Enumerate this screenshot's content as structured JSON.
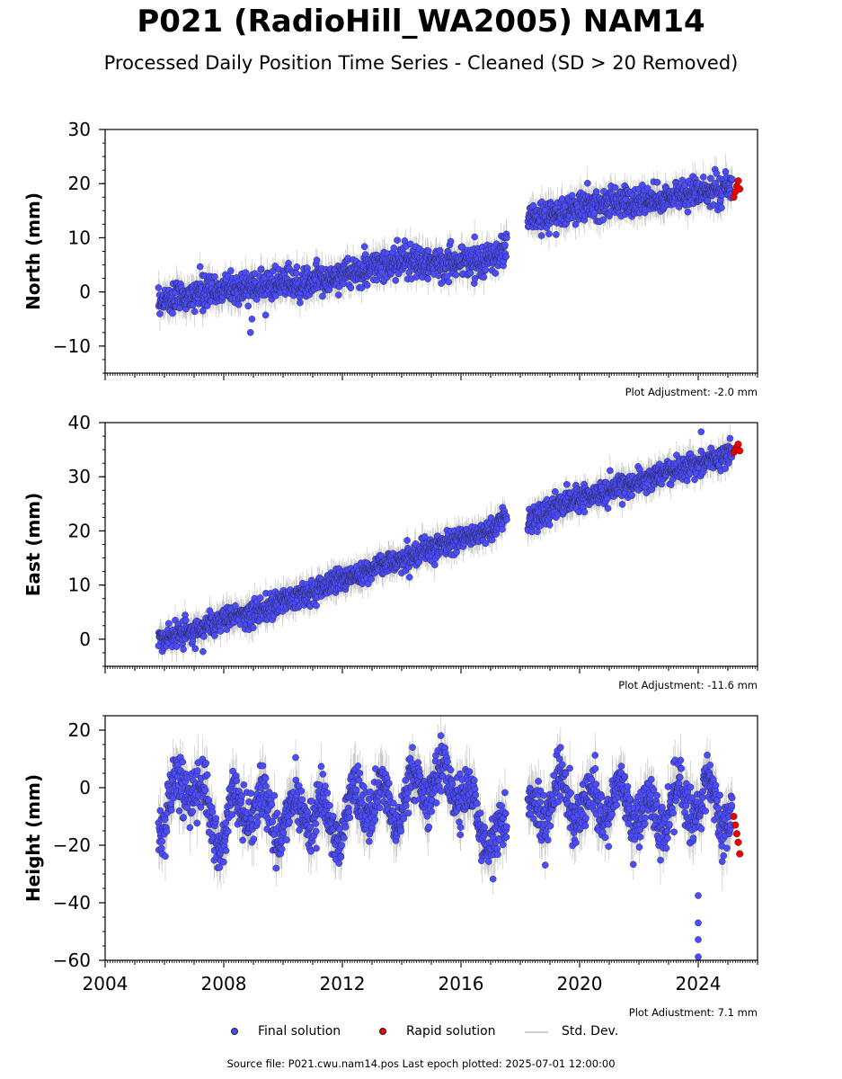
{
  "header": {
    "title": "P021 (RadioHill_WA2005) NAM14",
    "subtitle": "Processed Daily Position Time Series - Cleaned (SD > 20 Removed)"
  },
  "legend": {
    "final": "Final solution",
    "rapid": "Rapid solution",
    "stddev": "Std. Dev."
  },
  "footer": {
    "source": "Source file: P021.cwu.nam14.pos  Last epoch plotted: 2025-07-01 12:00:00"
  },
  "colors": {
    "final": "#4b4bff",
    "rapid": "#ee0000",
    "stddev": "#bdbdbd",
    "outline": "#222222"
  },
  "chart_data": [
    {
      "type": "scatter",
      "ylabel": "North (mm)",
      "adjustment": "Plot Adjustment: -2.0 mm",
      "xlim": [
        2004,
        2026
      ],
      "ylim": [
        -15,
        30
      ],
      "yticks": [
        -10,
        0,
        10,
        20,
        30
      ],
      "ytick_labels": [
        "−10",
        "0",
        "10",
        "20",
        "30"
      ],
      "xticks": [
        2004,
        2008,
        2012,
        2016,
        2020,
        2024
      ],
      "show_xtick_labels": false,
      "grid": false,
      "series": [
        {
          "name": "Final solution",
          "x": [
            2006.0,
            2007.0,
            2008.0,
            2009.0,
            2010.0,
            2011.0,
            2012.0,
            2013.0,
            2014.0,
            2015.0,
            2016.0,
            2017.0,
            2017.4,
            2018.3,
            2019.0,
            2020.0,
            2021.0,
            2022.0,
            2023.0,
            2024.0,
            2025.0
          ],
          "y": [
            -1.5,
            -0.5,
            0.5,
            1.0,
            1.5,
            2.0,
            3.0,
            4.5,
            5.5,
            5.5,
            5.5,
            6.0,
            7.5,
            13.5,
            14.0,
            16.0,
            16.5,
            16.5,
            17.5,
            18.5,
            19.5
          ]
        },
        {
          "name": "Rapid solution",
          "x": [
            2025.2,
            2025.25,
            2025.3,
            2025.35,
            2025.4
          ],
          "y": [
            17.5,
            18.5,
            19.5,
            20.5,
            19.0
          ]
        }
      ],
      "outliers": [
        {
          "x": 2008.9,
          "y": -7.5
        },
        {
          "x": 2008.95,
          "y": -5.0
        }
      ]
    },
    {
      "type": "scatter",
      "ylabel": "East (mm)",
      "adjustment": "Plot Adjustment: -11.6 mm",
      "xlim": [
        2004,
        2026
      ],
      "ylim": [
        -5,
        40
      ],
      "yticks": [
        0,
        10,
        20,
        30,
        40
      ],
      "ytick_labels": [
        "0",
        "10",
        "20",
        "30",
        "40"
      ],
      "xticks": [
        2004,
        2008,
        2012,
        2016,
        2020,
        2024
      ],
      "show_xtick_labels": false,
      "grid": false,
      "series": [
        {
          "name": "Final solution",
          "x": [
            2006.0,
            2007.0,
            2008.0,
            2009.0,
            2010.0,
            2011.0,
            2012.0,
            2013.0,
            2014.0,
            2015.0,
            2016.0,
            2017.0,
            2017.4,
            2018.3,
            2019.0,
            2020.0,
            2021.0,
            2022.0,
            2023.0,
            2024.0,
            2025.0
          ],
          "y": [
            0.5,
            1.5,
            3.5,
            5.0,
            7.0,
            9.0,
            11.0,
            13.0,
            15.0,
            16.5,
            18.5,
            20.0,
            22.0,
            22.0,
            24.0,
            26.0,
            27.5,
            29.0,
            31.0,
            32.5,
            34.0
          ]
        },
        {
          "name": "Rapid solution",
          "x": [
            2025.2,
            2025.25,
            2025.3,
            2025.35,
            2025.4
          ],
          "y": [
            34.5,
            35.0,
            35.5,
            36.0,
            34.8
          ]
        }
      ],
      "outliers": [
        {
          "x": 2007.3,
          "y": -2.3
        },
        {
          "x": 2024.1,
          "y": 38.3
        }
      ]
    },
    {
      "type": "scatter",
      "ylabel": "Height (mm)",
      "adjustment": "Plot Adjustment: 7.1 mm",
      "xlim": [
        2004,
        2026
      ],
      "ylim": [
        -60,
        25
      ],
      "yticks": [
        -60,
        -40,
        -20,
        0,
        20
      ],
      "ytick_labels": [
        "−60",
        "−40",
        "−20",
        "0",
        "20"
      ],
      "xticks": [
        2004,
        2008,
        2012,
        2016,
        2020,
        2024
      ],
      "xtick_labels": [
        "2004",
        "2008",
        "2012",
        "2016",
        "2020",
        "2024"
      ],
      "show_xtick_labels": true,
      "grid": false,
      "series": [
        {
          "name": "Final solution",
          "x": [
            2006.0,
            2006.8,
            2007.8,
            2008.8,
            2009.8,
            2010.8,
            2011.8,
            2012.8,
            2013.8,
            2014.8,
            2015.8,
            2016.8,
            2017.4,
            2018.3,
            2019.3,
            2020.3,
            2021.3,
            2022.3,
            2023.3,
            2024.3,
            2025.0
          ],
          "y": [
            -10,
            5,
            -15,
            -5,
            -12,
            -8,
            -14,
            -3,
            -8,
            3,
            2,
            -15,
            -20,
            -10,
            -2,
            -8,
            -4,
            -10,
            -6,
            -2,
            -10
          ]
        },
        {
          "name": "Rapid solution",
          "x": [
            2025.2,
            2025.25,
            2025.3,
            2025.35,
            2025.4
          ],
          "y": [
            -10,
            -13,
            -16,
            -19,
            -23
          ]
        }
      ],
      "outliers": [
        {
          "x": 2024.0,
          "y": -37.5
        },
        {
          "x": 2024.0,
          "y": -47.0
        },
        {
          "x": 2024.0,
          "y": -52.8
        },
        {
          "x": 2024.0,
          "y": -58.8
        }
      ]
    }
  ]
}
